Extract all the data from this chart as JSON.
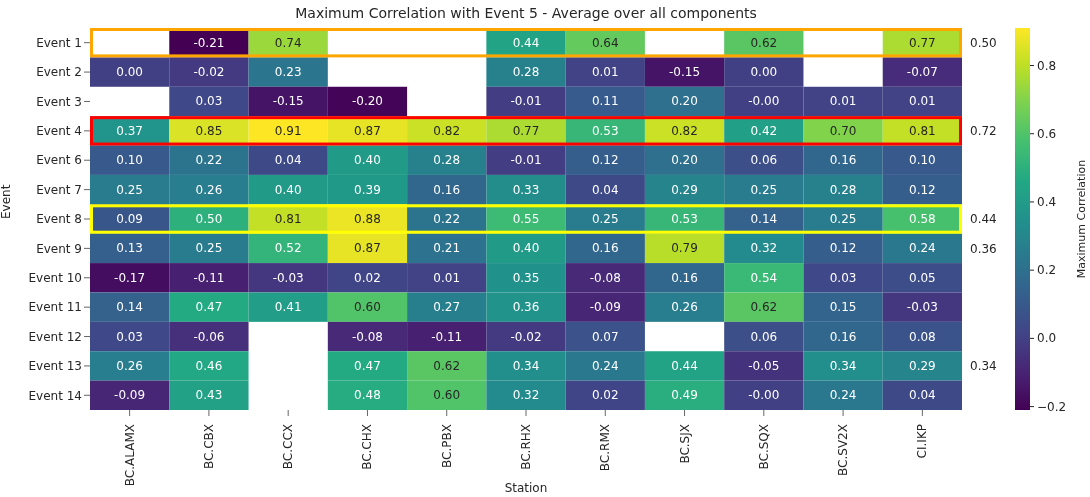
{
  "chart_data": {
    "type": "heatmap",
    "title": "Maximum Correlation with Event 5 - Average over all components",
    "xlabel": "Station",
    "ylabel": "Event",
    "clabel": "Maximum Correlation",
    "categories": [
      "BC.ALAMX",
      "BC.CBX",
      "BC.CCX",
      "BC.CHX",
      "BC.PBX",
      "BC.RHX",
      "BC.RMX",
      "BC.SJX",
      "BC.SQX",
      "BC.SV2X",
      "CI.IKP"
    ],
    "y_categories": [
      "Event 1",
      "Event 2",
      "Event 3",
      "Event 4",
      "Event 6",
      "Event 7",
      "Event 8",
      "Event 9",
      "Event 10",
      "Event 11",
      "Event 12",
      "Event 13",
      "Event 14"
    ],
    "y2_categories": [
      "0.50",
      null,
      null,
      "0.72",
      null,
      null,
      "0.44",
      "0.36",
      null,
      null,
      null,
      "0.34",
      null
    ],
    "cells": [
      [
        null,
        -0.21,
        0.74,
        null,
        null,
        0.44,
        0.64,
        null,
        0.62,
        null,
        0.77
      ],
      [
        0.0,
        -0.02,
        0.23,
        null,
        null,
        0.28,
        0.01,
        -0.15,
        0.0,
        null,
        -0.07
      ],
      [
        null,
        0.03,
        -0.15,
        -0.2,
        null,
        -0.01,
        0.11,
        0.2,
        -0.0,
        0.01,
        0.01
      ],
      [
        0.37,
        0.85,
        0.91,
        0.87,
        0.82,
        0.77,
        0.53,
        0.82,
        0.42,
        0.7,
        0.81
      ],
      [
        0.1,
        0.22,
        0.04,
        0.4,
        0.28,
        -0.01,
        0.12,
        0.2,
        0.06,
        0.16,
        0.1
      ],
      [
        0.25,
        0.26,
        0.4,
        0.39,
        0.16,
        0.33,
        0.04,
        0.29,
        0.25,
        0.28,
        0.12
      ],
      [
        0.09,
        0.5,
        0.81,
        0.88,
        0.22,
        0.55,
        0.25,
        0.53,
        0.14,
        0.25,
        0.58
      ],
      [
        0.13,
        0.25,
        0.52,
        0.87,
        0.21,
        0.4,
        0.16,
        0.79,
        0.32,
        0.12,
        0.24
      ],
      [
        -0.17,
        -0.11,
        -0.03,
        0.02,
        0.01,
        0.35,
        -0.08,
        0.16,
        0.54,
        0.03,
        0.05
      ],
      [
        0.14,
        0.47,
        0.41,
        0.6,
        0.27,
        0.36,
        -0.09,
        0.26,
        0.62,
        0.15,
        -0.03
      ],
      [
        0.03,
        -0.06,
        null,
        -0.08,
        -0.11,
        -0.02,
        0.07,
        null,
        0.06,
        0.16,
        0.08
      ],
      [
        0.26,
        0.46,
        null,
        0.47,
        0.62,
        0.34,
        0.24,
        0.44,
        -0.05,
        0.34,
        0.29
      ],
      [
        -0.09,
        0.43,
        null,
        0.48,
        0.6,
        0.32,
        0.02,
        0.49,
        -0.0,
        0.24,
        0.04
      ]
    ],
    "cell_labels": [
      [
        null,
        "-0.21",
        "0.74",
        null,
        null,
        "0.44",
        "0.64",
        null,
        "0.62",
        null,
        "0.77"
      ],
      [
        "0.00",
        "-0.02",
        "0.23",
        null,
        null,
        "0.28",
        "0.01",
        "-0.15",
        "0.00",
        null,
        "-0.07"
      ],
      [
        null,
        "0.03",
        "-0.15",
        "-0.20",
        null,
        "-0.01",
        "0.11",
        "0.20",
        "-0.00",
        "0.01",
        "0.01"
      ],
      [
        "0.37",
        "0.85",
        "0.91",
        "0.87",
        "0.82",
        "0.77",
        "0.53",
        "0.82",
        "0.42",
        "0.70",
        "0.81"
      ],
      [
        "0.10",
        "0.22",
        "0.04",
        "0.40",
        "0.28",
        "-0.01",
        "0.12",
        "0.20",
        "0.06",
        "0.16",
        "0.10"
      ],
      [
        "0.25",
        "0.26",
        "0.40",
        "0.39",
        "0.16",
        "0.33",
        "0.04",
        "0.29",
        "0.25",
        "0.28",
        "0.12"
      ],
      [
        "0.09",
        "0.50",
        "0.81",
        "0.88",
        "0.22",
        "0.55",
        "0.25",
        "0.53",
        "0.14",
        "0.25",
        "0.58"
      ],
      [
        "0.13",
        "0.25",
        "0.52",
        "0.87",
        "0.21",
        "0.40",
        "0.16",
        "0.79",
        "0.32",
        "0.12",
        "0.24"
      ],
      [
        "-0.17",
        "-0.11",
        "-0.03",
        "0.02",
        "0.01",
        "0.35",
        "-0.08",
        "0.16",
        "0.54",
        "0.03",
        "0.05"
      ],
      [
        "0.14",
        "0.47",
        "0.41",
        "0.60",
        "0.27",
        "0.36",
        "-0.09",
        "0.26",
        "0.62",
        "0.15",
        "-0.03"
      ],
      [
        "0.03",
        "-0.06",
        null,
        "-0.08",
        "-0.11",
        "-0.02",
        "0.07",
        null,
        "0.06",
        "0.16",
        "0.08"
      ],
      [
        "0.26",
        "0.46",
        null,
        "0.47",
        "0.62",
        "0.34",
        "0.24",
        "0.44",
        "-0.05",
        "0.34",
        "0.29"
      ],
      [
        "-0.09",
        "0.43",
        null,
        "0.48",
        "0.60",
        "0.32",
        "0.02",
        "0.49",
        "-0.00",
        "0.24",
        "0.04"
      ]
    ],
    "clim": [
      -0.21,
      0.91
    ],
    "cticks": [
      {
        "value": -0.2,
        "label": "−0.2"
      },
      {
        "value": 0,
        "label": "0.0"
      },
      {
        "value": 0.2,
        "label": "0.2"
      },
      {
        "value": 0.4,
        "label": "0.4"
      },
      {
        "value": 0.6,
        "label": "0.6"
      },
      {
        "value": 0.8,
        "label": "0.8"
      }
    ]
  }
}
